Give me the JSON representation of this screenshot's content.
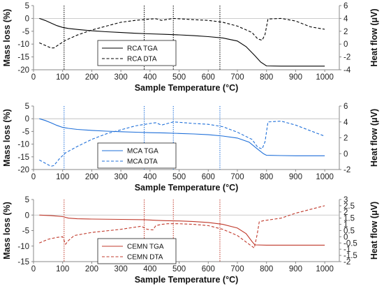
{
  "chart_data": [
    {
      "type": "line",
      "xlabel": "Sample Temperature (°C)",
      "ylabel": "Mass loss (%)",
      "y2label": "Heat flow (μV)",
      "xlim": [
        0,
        1050
      ],
      "ylim": [
        -20,
        5
      ],
      "y2lim": [
        -4,
        6
      ],
      "xticks": [
        0,
        100,
        200,
        300,
        400,
        500,
        600,
        700,
        800,
        900,
        1000
      ],
      "yticks": [
        -20,
        -15,
        -10,
        -5,
        0,
        5
      ],
      "y2ticks": [
        -4,
        -2,
        0,
        2,
        4,
        6
      ],
      "vlines": [
        105,
        380,
        480,
        640
      ],
      "vline_color": "#000000",
      "legend_position": "center-left",
      "series": [
        {
          "name": "RCA TGA",
          "axis": "left",
          "style": "solid",
          "color": "#000000",
          "x": [
            20,
            40,
            60,
            80,
            100,
            120,
            150,
            200,
            250,
            300,
            350,
            400,
            450,
            500,
            550,
            600,
            650,
            700,
            730,
            760,
            780,
            800,
            850,
            900,
            950,
            1000
          ],
          "y": [
            0,
            -0.8,
            -1.8,
            -2.8,
            -3.5,
            -3.9,
            -4.3,
            -4.8,
            -5.2,
            -5.5,
            -5.8,
            -6.0,
            -6.2,
            -6.4,
            -6.7,
            -7.1,
            -7.6,
            -8.8,
            -11,
            -14.5,
            -17,
            -18.5,
            -18.6,
            -18.6,
            -18.6,
            -18.6
          ]
        },
        {
          "name": "RCA DTA",
          "axis": "right",
          "style": "dashed",
          "color": "#000000",
          "x": [
            20,
            40,
            60,
            70,
            90,
            110,
            150,
            200,
            250,
            300,
            350,
            400,
            420,
            440,
            460,
            480,
            500,
            550,
            600,
            650,
            700,
            750,
            770,
            785,
            795,
            805,
            850,
            900,
            950,
            1000
          ],
          "y": [
            0.2,
            -0.2,
            -0.6,
            -0.6,
            0,
            0.6,
            1.4,
            2.2,
            2.8,
            3.4,
            3.7,
            3.9,
            3.95,
            3.7,
            3.85,
            4.0,
            3.95,
            3.8,
            3.7,
            3.4,
            2.8,
            1.8,
            0.8,
            0.6,
            1.5,
            3.9,
            4.0,
            3.6,
            2.7,
            2.3
          ]
        }
      ]
    },
    {
      "type": "line",
      "xlabel": "Sample Temperature (°C)",
      "ylabel": "Mass loss (%)",
      "y2label": "Heat flow (μV)",
      "xlim": [
        0,
        1050
      ],
      "ylim": [
        -20,
        5
      ],
      "y2lim": [
        -2,
        6
      ],
      "xticks": [
        0,
        100,
        200,
        300,
        400,
        500,
        600,
        700,
        800,
        900,
        1000
      ],
      "yticks": [
        -20,
        -15,
        -10,
        -5,
        0,
        5
      ],
      "y2ticks": [
        -2,
        0,
        2,
        4,
        6
      ],
      "vlines": [
        105,
        380,
        480,
        640
      ],
      "vline_color": "#1e6fd9",
      "legend_position": "center-left",
      "series": [
        {
          "name": "MCA TGA",
          "axis": "left",
          "style": "solid",
          "color": "#1e6fd9",
          "x": [
            20,
            40,
            60,
            80,
            100,
            120,
            150,
            200,
            250,
            300,
            350,
            400,
            450,
            500,
            550,
            600,
            650,
            700,
            740,
            770,
            790,
            800,
            850,
            900,
            950,
            1000
          ],
          "y": [
            0,
            -0.7,
            -1.6,
            -2.6,
            -3.4,
            -3.8,
            -4.2,
            -4.6,
            -4.9,
            -5.1,
            -5.3,
            -5.5,
            -5.6,
            -5.8,
            -6.0,
            -6.3,
            -6.8,
            -7.6,
            -9.2,
            -12,
            -13.8,
            -14.4,
            -14.5,
            -14.6,
            -14.6,
            -14.6
          ]
        },
        {
          "name": "MCA DTA",
          "axis": "right",
          "style": "dashed",
          "color": "#1e6fd9",
          "x": [
            20,
            40,
            60,
            70,
            90,
            110,
            150,
            200,
            250,
            300,
            350,
            400,
            420,
            440,
            460,
            480,
            500,
            550,
            600,
            650,
            700,
            750,
            770,
            785,
            795,
            805,
            850,
            900,
            950,
            1000
          ],
          "y": [
            -0.8,
            -1.2,
            -1.6,
            -1.5,
            -0.6,
            0.1,
            0.9,
            1.8,
            2.5,
            3.0,
            3.5,
            3.8,
            3.9,
            3.6,
            3.8,
            4.0,
            3.95,
            3.8,
            3.7,
            3.4,
            2.7,
            1.8,
            0.8,
            0.6,
            1.5,
            4.0,
            4.1,
            3.6,
            2.9,
            2.2
          ]
        }
      ]
    },
    {
      "type": "line",
      "xlabel": "Sample Temperature (°C)",
      "ylabel": "Mass loss (%)",
      "y2label": "Heat flow (μV)",
      "xlim": [
        0,
        1050
      ],
      "ylim": [
        -15,
        5
      ],
      "y2lim": [
        -2,
        3
      ],
      "xticks": [
        0,
        100,
        200,
        300,
        400,
        500,
        600,
        700,
        800,
        900,
        1000
      ],
      "yticks": [
        -15,
        -10,
        -5,
        0,
        5
      ],
      "y2ticks": [
        -2,
        -1.5,
        -1,
        -0.5,
        0,
        0.5,
        1,
        1.5,
        2,
        2.5,
        3
      ],
      "vlines": [
        105,
        380,
        480,
        640
      ],
      "vline_color": "#c0392b",
      "legend_position": "center-left",
      "series": [
        {
          "name": "CEMN TGA",
          "axis": "left",
          "style": "solid",
          "color": "#c0392b",
          "x": [
            20,
            60,
            100,
            120,
            150,
            200,
            300,
            380,
            420,
            450,
            500,
            550,
            600,
            650,
            700,
            730,
            750,
            760,
            800,
            850,
            900,
            950,
            1000
          ],
          "y": [
            0,
            -0.2,
            -0.5,
            -1.0,
            -1.2,
            -1.3,
            -1.4,
            -1.5,
            -1.7,
            -1.8,
            -1.9,
            -2.1,
            -2.4,
            -3.0,
            -4.2,
            -6.0,
            -8.5,
            -9.6,
            -9.7,
            -9.7,
            -9.7,
            -9.7,
            -9.7
          ]
        },
        {
          "name": "CEMN DTA",
          "axis": "right",
          "style": "dashed",
          "color": "#c0392b",
          "x": [
            20,
            50,
            80,
            100,
            110,
            120,
            140,
            200,
            300,
            370,
            390,
            410,
            420,
            440,
            460,
            500,
            550,
            600,
            650,
            700,
            740,
            758,
            768,
            775,
            790,
            850,
            900,
            950,
            1000
          ],
          "y": [
            -0.5,
            -0.2,
            -0.05,
            0,
            -0.6,
            -0.3,
            0.1,
            0.35,
            0.6,
            0.85,
            0.6,
            0.55,
            0.9,
            1.0,
            1.05,
            1.05,
            1.0,
            0.9,
            0.6,
            0.1,
            -0.6,
            -0.9,
            0.2,
            1.2,
            1.3,
            1.5,
            1.9,
            2.2,
            2.5
          ]
        }
      ]
    }
  ]
}
